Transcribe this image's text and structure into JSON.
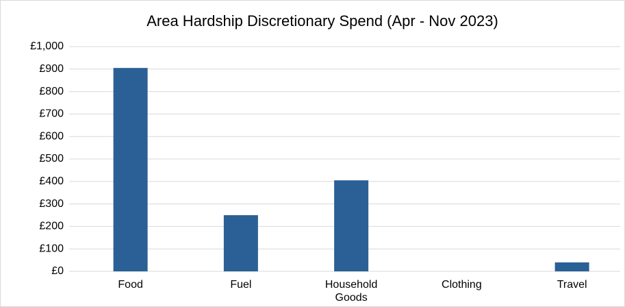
{
  "chart_data": {
    "type": "bar",
    "title": "Area Hardship Discretionary Spend (Apr - Nov 2023)",
    "categories": [
      "Food",
      "Fuel",
      "Household Goods",
      "Clothing",
      "Travel"
    ],
    "values": [
      905,
      250,
      405,
      0,
      40
    ],
    "color": "#2a6095",
    "ylim": [
      0,
      1000
    ],
    "yticks": [
      {
        "value": 0,
        "label": "£0"
      },
      {
        "value": 100,
        "label": "£100"
      },
      {
        "value": 200,
        "label": "£200"
      },
      {
        "value": 300,
        "label": "£300"
      },
      {
        "value": 400,
        "label": "£400"
      },
      {
        "value": 500,
        "label": "£500"
      },
      {
        "value": 600,
        "label": "£600"
      },
      {
        "value": 700,
        "label": "£700"
      },
      {
        "value": 800,
        "label": "£800"
      },
      {
        "value": 900,
        "label": "£900"
      },
      {
        "value": 1000,
        "label": "£1,000"
      }
    ],
    "grid": true
  }
}
